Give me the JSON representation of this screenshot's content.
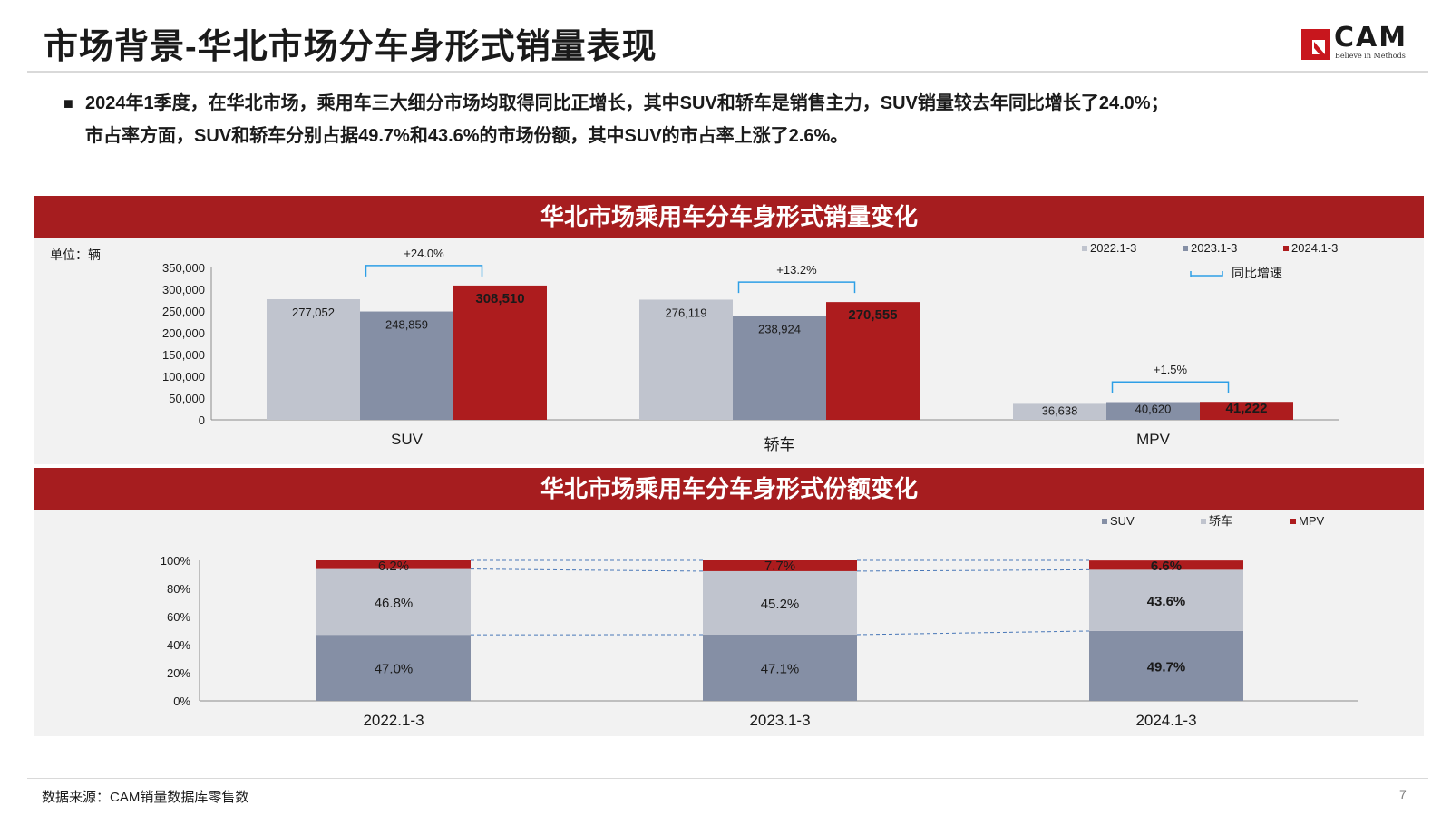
{
  "page": {
    "title": "市场背景-华北市场分车身形式销量表现",
    "logo": {
      "text": "CAM",
      "tagline": "Believe in Methods"
    },
    "bullets": [
      "2024年1季度，在华北市场，乘用车三大细分市场均取得同比正增长，其中SUV和轿车是销售主力，SUV销量较去年同比增长了24.0%；",
      "市占率方面，SUV和轿车分别占据49.7%和43.6%的市场份额，其中SUV的市占率上涨了2.6%。"
    ],
    "source": "数据来源：CAM销量数据库零售数",
    "page_number": "7"
  },
  "colors": {
    "grey_light": "#c0c4ce",
    "grey_blue": "#858fa5",
    "red": "#ad1c1e",
    "banner_red": "#a61d1f",
    "bracket": "#2e9fe6"
  },
  "chart_data": [
    {
      "type": "bar",
      "title": "华北市场乘用车分车身形式销量变化",
      "unit": "单位：辆",
      "categories": [
        "SUV",
        "轿车",
        "MPV"
      ],
      "series": [
        {
          "name": "2022.1-3",
          "color": "#c0c4ce",
          "values": [
            277052,
            276119,
            36638
          ],
          "labels": [
            "277,052",
            "276,119",
            "36,638"
          ]
        },
        {
          "name": "2023.1-3",
          "color": "#858fa5",
          "values": [
            248859,
            238924,
            40620
          ],
          "labels": [
            "248,859",
            "238,924",
            "40,620"
          ]
        },
        {
          "name": "2024.1-3",
          "color": "#ad1c1e",
          "values": [
            308510,
            270555,
            41222
          ],
          "labels": [
            "308,510",
            "270,555",
            "41,222"
          ]
        }
      ],
      "growth_labels": [
        "+24.0%",
        "+13.2%",
        "+1.5%"
      ],
      "growth_legend": "同比增速",
      "yticks": [
        "350,000",
        "300,000",
        "250,000",
        "200,000",
        "150,000",
        "100,000",
        "50,000",
        "0"
      ],
      "ylim": [
        0,
        350000
      ],
      "legend_position": "top-right"
    },
    {
      "type": "bar",
      "stacked": true,
      "percent": true,
      "title": "华北市场乘用车分车身形式份额变化",
      "categories": [
        "2022.1-3",
        "2023.1-3",
        "2024.1-3"
      ],
      "series": [
        {
          "name": "SUV",
          "color": "#858fa5",
          "values": [
            47.0,
            47.1,
            49.7
          ],
          "labels": [
            "47.0%",
            "47.1%",
            "49.7%"
          ]
        },
        {
          "name": "轿车",
          "color": "#c0c4ce",
          "values": [
            46.8,
            45.2,
            43.6
          ],
          "labels": [
            "46.8%",
            "45.2%",
            "43.6%"
          ]
        },
        {
          "name": "MPV",
          "color": "#ad1c1e",
          "values": [
            6.2,
            7.7,
            6.6
          ],
          "labels": [
            "6.2%",
            "7.7%",
            "6.6%"
          ]
        }
      ],
      "yticks": [
        "100%",
        "80%",
        "60%",
        "40%",
        "20%",
        "0%"
      ],
      "ylim": [
        0,
        100
      ],
      "legend_position": "top-right"
    }
  ]
}
